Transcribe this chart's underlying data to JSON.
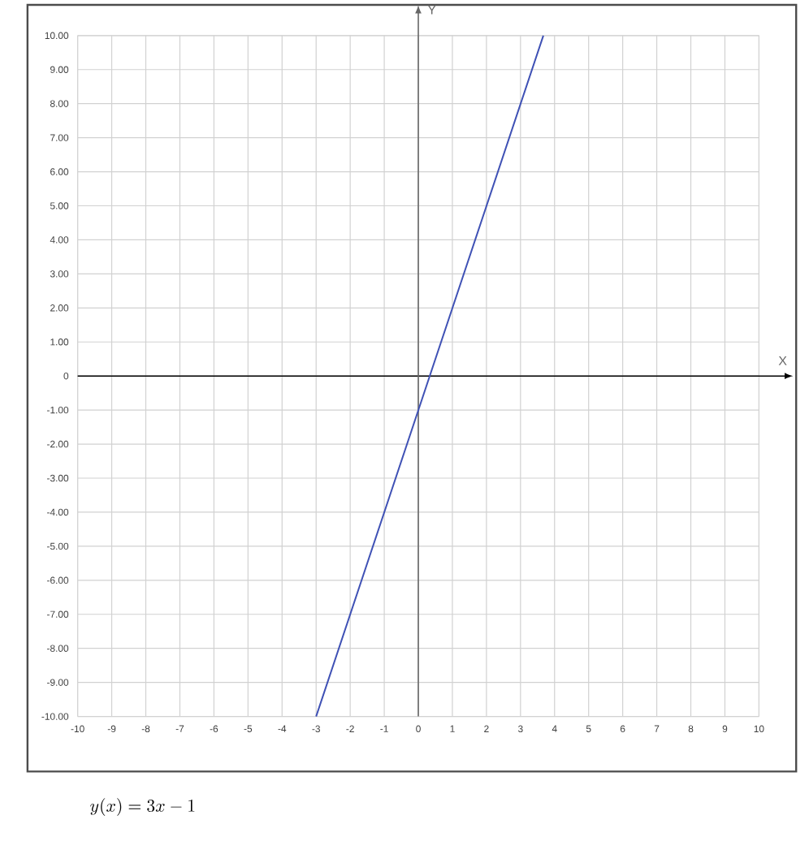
{
  "chart_data": {
    "type": "line",
    "xlabel": "X",
    "ylabel": "Y",
    "x": [
      -3,
      3.67
    ],
    "series": [
      {
        "color": "#3f51b5",
        "values": [
          -10,
          10
        ]
      }
    ],
    "xlim": [
      -10,
      10
    ],
    "ylim": [
      -10,
      10
    ],
    "xticks": [
      -10,
      -9,
      -8,
      -7,
      -6,
      -5,
      -4,
      -3,
      -2,
      -1,
      0,
      1,
      2,
      3,
      4,
      5,
      6,
      7,
      8,
      9,
      10
    ],
    "yticks": [
      {
        "value": -10,
        "label": "-10.00"
      },
      {
        "value": -9,
        "label": "-9.00"
      },
      {
        "value": -8,
        "label": "-8.00"
      },
      {
        "value": -7,
        "label": "-7.00"
      },
      {
        "value": -6,
        "label": "-6.00"
      },
      {
        "value": -5,
        "label": "-5.00"
      },
      {
        "value": -4,
        "label": "-4.00"
      },
      {
        "value": -3,
        "label": "-3.00"
      },
      {
        "value": -2,
        "label": "-2.00"
      },
      {
        "value": -1,
        "label": "-1.00"
      },
      0,
      {
        "value": 1,
        "label": "1.00"
      },
      {
        "value": 2,
        "label": "2.00"
      },
      {
        "value": 3,
        "label": "3.00"
      },
      {
        "value": 4,
        "label": "4.00"
      },
      {
        "value": 5,
        "label": "5.00"
      },
      {
        "value": 6,
        "label": "6.00"
      },
      {
        "value": 7,
        "label": "7.00"
      },
      {
        "value": 8,
        "label": "8.00"
      },
      {
        "value": 9,
        "label": "9.00"
      },
      {
        "value": 10,
        "label": "10.00"
      }
    ],
    "grid": true,
    "annotations": [
      "y(x) = 3x - 1"
    ]
  }
}
